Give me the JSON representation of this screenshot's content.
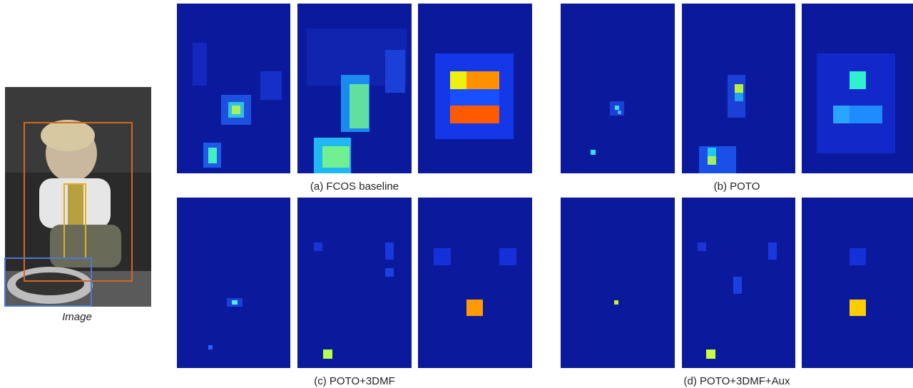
{
  "image_caption": "Image",
  "captions": [
    "(a) FCOS baseline",
    "(b) POTO",
    "(c) POTO+3DMF",
    "(d) POTO+3DMF+Aux"
  ]
}
